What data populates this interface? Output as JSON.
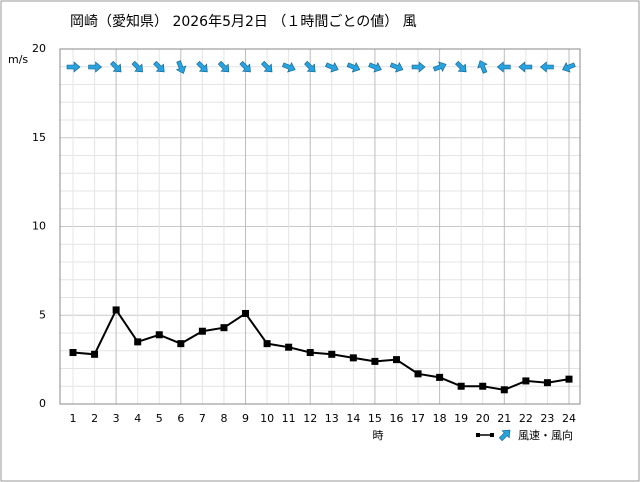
{
  "chart_data": {
    "type": "line",
    "title": "岡崎（愛知県） 2026年5月2日 （１時間ごとの値） 風",
    "y_label": "m/s",
    "x_label": "時",
    "legend_label": "風速・風向",
    "categories": [
      "1",
      "2",
      "3",
      "4",
      "5",
      "6",
      "7",
      "8",
      "9",
      "10",
      "11",
      "12",
      "13",
      "14",
      "15",
      "16",
      "17",
      "18",
      "19",
      "20",
      "21",
      "22",
      "23",
      "24"
    ],
    "series": [
      {
        "name": "風速",
        "color": "#000000",
        "values": [
          2.9,
          2.8,
          5.3,
          3.5,
          3.9,
          3.4,
          4.1,
          4.3,
          5.1,
          3.4,
          3.2,
          2.9,
          2.8,
          2.6,
          2.4,
          2.5,
          1.7,
          1.5,
          1.0,
          1.0,
          0.8,
          1.3,
          1.2,
          1.4
        ]
      }
    ],
    "wind_direction_deg": [
      270,
      270,
      315,
      315,
      315,
      337.5,
      315,
      315,
      315,
      315,
      292.5,
      315,
      292.5,
      292.5,
      292.5,
      292.5,
      270,
      247.5,
      315,
      157.5,
      90,
      90,
      90,
      67.5
    ],
    "arrow_color": "#29a3e0",
    "ylim": [
      0,
      20
    ],
    "yticks": [
      0,
      5,
      10,
      15,
      20
    ],
    "grid": true
  }
}
